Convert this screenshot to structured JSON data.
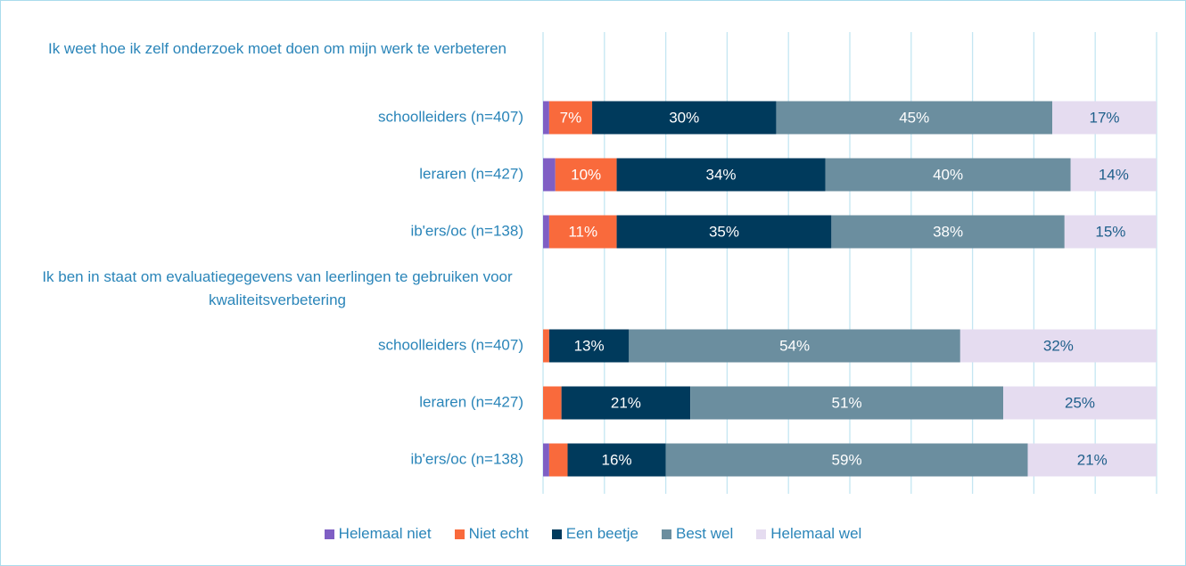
{
  "chart_data": {
    "type": "stacked-bar-horizontal",
    "categories": [
      "Ik weet hoe ik zelf onderzoek moet doen om mijn werk te verbeteren",
      "schoolleiders (n=407)",
      "leraren (n=427)",
      "ib'ers/oc (n=138)",
      "Ik ben in staat om evaluatiegegevens van leerlingen te gebruiken voor kwaliteitsverbetering",
      "schoolleiders (n=407)",
      "leraren (n=427)",
      "ib'ers/oc (n=138)"
    ],
    "series": [
      {
        "name": "Helemaal niet",
        "color": "#7f5fc4",
        "label_color": "#ffffff",
        "values": [
          null,
          1,
          2,
          1,
          null,
          0,
          0,
          1
        ],
        "value_labels": [
          null,
          null,
          null,
          null,
          null,
          null,
          null,
          null
        ]
      },
      {
        "name": "Niet echt",
        "color": "#f96a3c",
        "label_color": "#ffffff",
        "values": [
          null,
          7,
          10,
          11,
          null,
          1,
          3,
          3
        ],
        "value_labels": [
          null,
          "7%",
          "10%",
          "11%",
          null,
          null,
          null,
          null
        ]
      },
      {
        "name": "Een beetje",
        "color": "#003a5c",
        "label_color": "#ffffff",
        "values": [
          null,
          30,
          34,
          35,
          null,
          13,
          21,
          16
        ],
        "value_labels": [
          null,
          "30%",
          "34%",
          "35%",
          null,
          "13%",
          "21%",
          "16%"
        ]
      },
      {
        "name": "Best wel",
        "color": "#6b8e9f",
        "label_color": "#ffffff",
        "values": [
          null,
          45,
          40,
          38,
          null,
          54,
          51,
          59
        ],
        "value_labels": [
          null,
          "45%",
          "40%",
          "38%",
          null,
          "54%",
          "51%",
          "59%"
        ]
      },
      {
        "name": "Helemaal wel",
        "color": "#e5dcf0",
        "label_color": "#1f5f8b",
        "values": [
          null,
          17,
          14,
          15,
          null,
          32,
          25,
          21
        ],
        "value_labels": [
          null,
          "17%",
          "14%",
          "15%",
          null,
          "32%",
          "25%",
          "21%"
        ]
      }
    ],
    "xlim": [
      0,
      100
    ],
    "xticks": [
      0,
      10,
      20,
      30,
      40,
      50,
      60,
      70,
      80,
      90,
      100
    ],
    "grid": true,
    "legend": "bottom"
  }
}
